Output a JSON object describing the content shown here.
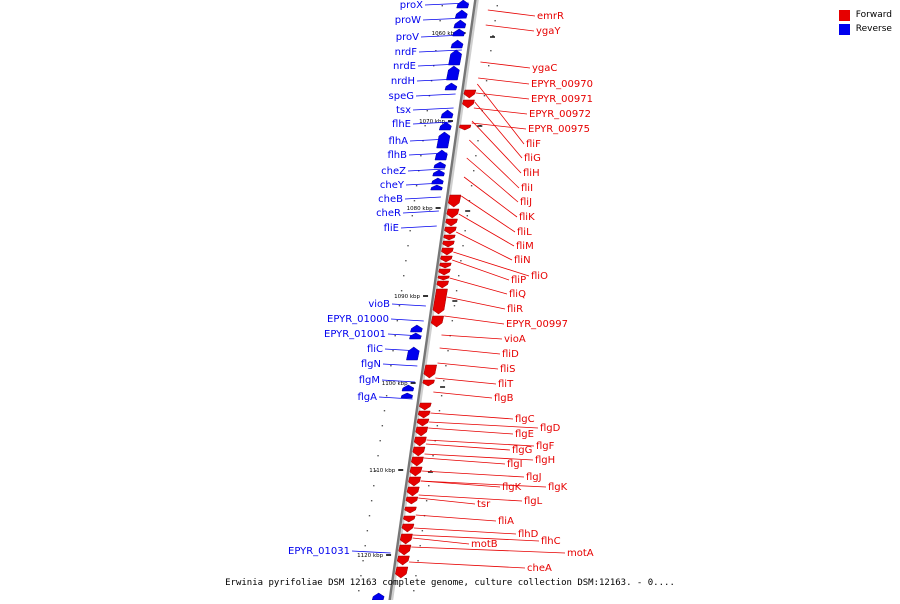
{
  "legend": {
    "items": [
      {
        "label": "Forward",
        "color": "#e60000"
      },
      {
        "label": "Reverse",
        "color": "#0000ee"
      }
    ]
  },
  "caption": "Erwinia pyrifoliae DSM 12163 complete genome, culture collection DSM:12163. - 0....",
  "scale_ticks": [
    "1060 kbp",
    "1070 kbp",
    "1080 kbp",
    "1090 kbp",
    "1100 kbp",
    "1110 kbp",
    "1120 kbp"
  ],
  "reverse_genes": [
    "proX",
    "proW",
    "proV",
    "nrdF",
    "nrdE",
    "nrdH",
    "speG",
    "tsx",
    "flhE",
    "flhA",
    "flhB",
    "cheZ",
    "cheY",
    "cheB",
    "cheR",
    "fliE",
    "vioB",
    "EPYR_01000",
    "EPYR_01001",
    "fliC",
    "flgN",
    "flgM",
    "flgA",
    "EPYR_01031"
  ],
  "forward_genes": [
    "emrR",
    "ygaY",
    "ygaC",
    "EPYR_00970",
    "EPYR_00971",
    "EPYR_00972",
    "EPYR_00975",
    "fliF",
    "fliG",
    "fliH",
    "fliI",
    "fliJ",
    "fliK",
    "fliL",
    "fliM",
    "fliN",
    "fliO",
    "fliP",
    "fliQ",
    "fliR",
    "EPYR_00997",
    "vioA",
    "fliD",
    "fliS",
    "fliT",
    "flgB",
    "flgC",
    "flgD",
    "flgE",
    "flgF",
    "flgG",
    "flgH",
    "flgI",
    "flgJ",
    "flgK",
    "flgK",
    "flgL",
    "tsr",
    "fliA",
    "flhD",
    "flhC",
    "motA",
    "motB",
    "cheA"
  ]
}
